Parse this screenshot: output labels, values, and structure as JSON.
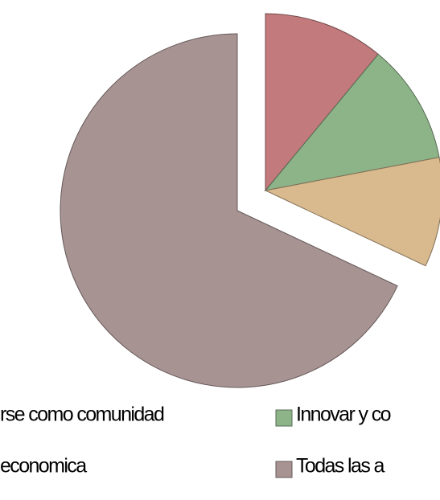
{
  "chart_data": {
    "type": "pie",
    "categories": [
      "rse como comunidad",
      "Innovar y co",
      "economica",
      "Todas las a"
    ],
    "values": [
      11,
      11,
      10,
      68
    ],
    "colors": [
      "#c27a7c",
      "#8db388",
      "#d9b98e",
      "#a89393"
    ],
    "explode": [
      true,
      true,
      true,
      false
    ],
    "legend": "bottom"
  }
}
